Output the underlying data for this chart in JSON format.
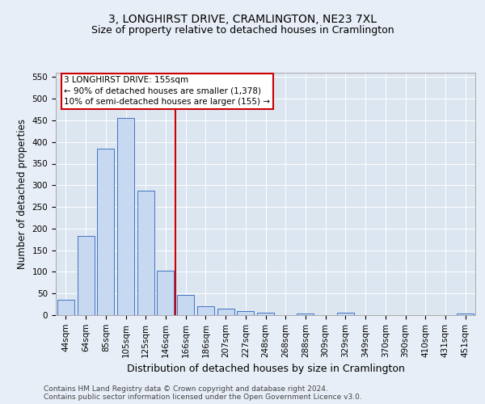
{
  "title": "3, LONGHIRST DRIVE, CRAMLINGTON, NE23 7XL",
  "subtitle": "Size of property relative to detached houses in Cramlington",
  "xlabel": "Distribution of detached houses by size in Cramlington",
  "ylabel": "Number of detached properties",
  "categories": [
    "44sqm",
    "64sqm",
    "85sqm",
    "105sqm",
    "125sqm",
    "146sqm",
    "166sqm",
    "186sqm",
    "207sqm",
    "227sqm",
    "248sqm",
    "268sqm",
    "288sqm",
    "309sqm",
    "329sqm",
    "349sqm",
    "370sqm",
    "390sqm",
    "410sqm",
    "431sqm",
    "451sqm"
  ],
  "values": [
    35,
    183,
    385,
    456,
    288,
    103,
    46,
    20,
    15,
    9,
    5,
    0,
    4,
    0,
    5,
    0,
    0,
    0,
    0,
    0,
    4
  ],
  "bar_color": "#c6d9f1",
  "bar_edge_color": "#4472c4",
  "vline_x_index": 6,
  "vline_color": "#cc0000",
  "annotation_line1": "3 LONGHIRST DRIVE: 155sqm",
  "annotation_line2": "← 90% of detached houses are smaller (1,378)",
  "annotation_line3": "10% of semi-detached houses are larger (155) →",
  "annotation_box_color": "#cc0000",
  "ylim": [
    0,
    560
  ],
  "yticks": [
    0,
    50,
    100,
    150,
    200,
    250,
    300,
    350,
    400,
    450,
    500,
    550
  ],
  "background_color": "#e8eef7",
  "plot_bg_color": "#dce6f1",
  "grid_color": "#ffffff",
  "footer_line1": "Contains HM Land Registry data © Crown copyright and database right 2024.",
  "footer_line2": "Contains public sector information licensed under the Open Government Licence v3.0.",
  "title_fontsize": 10,
  "subtitle_fontsize": 9,
  "xlabel_fontsize": 9,
  "ylabel_fontsize": 8.5,
  "tick_fontsize": 7.5,
  "annotation_fontsize": 7.5,
  "footer_fontsize": 6.5
}
